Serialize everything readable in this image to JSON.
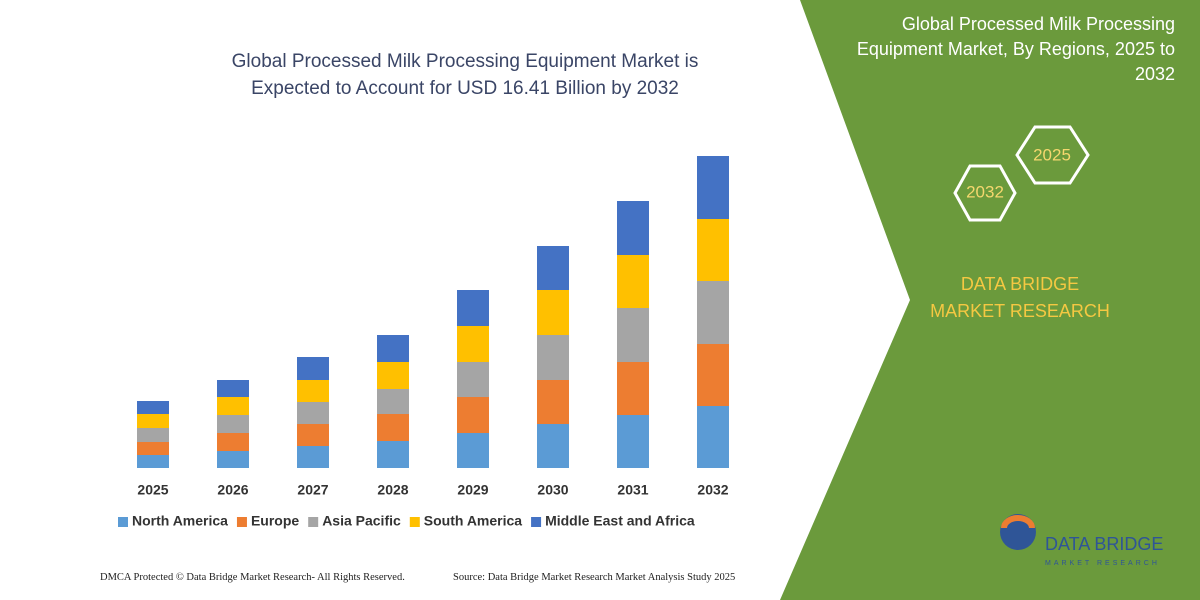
{
  "chart_data": {
    "type": "bar",
    "stacked": true,
    "title": "Global Processed Milk Processing Equipment Market is Expected to Account for USD 16.41 Billion by 2032",
    "categories": [
      "2025",
      "2026",
      "2027",
      "2028",
      "2029",
      "2030",
      "2031",
      "2032"
    ],
    "series": [
      {
        "name": "North America",
        "color": "#5b9bd5",
        "values": [
          13,
          17,
          22,
          27,
          35,
          44,
          53,
          62
        ]
      },
      {
        "name": "Europe",
        "color": "#ed7d31",
        "values": [
          13,
          18,
          22,
          27,
          36,
          44,
          53,
          62
        ]
      },
      {
        "name": "Asia Pacific",
        "color": "#a5a5a5",
        "values": [
          14,
          18,
          22,
          25,
          35,
          45,
          54,
          63
        ]
      },
      {
        "name": "South America",
        "color": "#ffc000",
        "values": [
          14,
          18,
          22,
          27,
          36,
          45,
          53,
          62
        ]
      },
      {
        "name": "Middle East and Africa",
        "color": "#4472c4",
        "values": [
          13,
          17,
          23,
          27,
          36,
          44,
          54,
          63
        ]
      }
    ],
    "legend": "bottom"
  },
  "panel": {
    "title": "Global Processed Milk Processing Equipment Market, By Regions, 2025 to 2032",
    "hexagons": [
      "2032",
      "2025"
    ],
    "brand": "DATA BRIDGE MARKET RESEARCH"
  },
  "logo": {
    "name": "DATA BRIDGE",
    "tagline": "MARKET RESEARCH"
  },
  "footer": {
    "left": "DMCA Protected © Data Bridge Market Research- All Rights Reserved.",
    "right": "Source: Data Bridge Market Research Market Analysis Study 2025"
  }
}
